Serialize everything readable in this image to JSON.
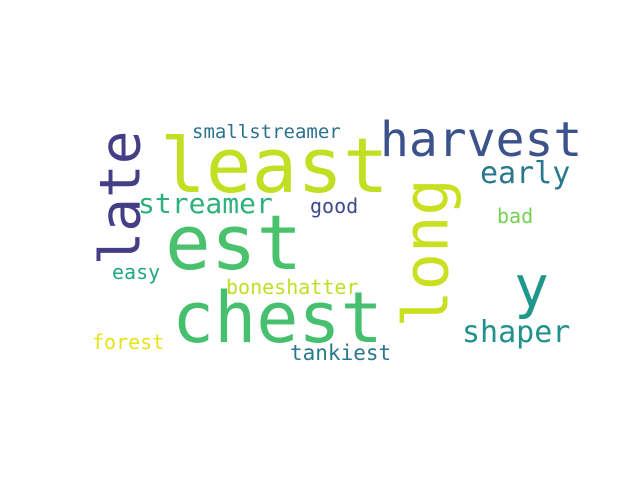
{
  "words": [
    {
      "text": "least",
      "color": "#c2df23"
    },
    {
      "text": "harvest",
      "color": "#3b528b"
    },
    {
      "text": "late",
      "color": "#433e85"
    },
    {
      "text": "smallstreamer",
      "color": "#2c728e"
    },
    {
      "text": "long",
      "color": "#c8e020"
    },
    {
      "text": "early",
      "color": "#2a788e"
    },
    {
      "text": "streamer",
      "color": "#2db27d"
    },
    {
      "text": "good",
      "color": "#3e4a89"
    },
    {
      "text": "est",
      "color": "#4ac16d"
    },
    {
      "text": "bad",
      "color": "#75d054"
    },
    {
      "text": "y",
      "color": "#1f988b"
    },
    {
      "text": "easy",
      "color": "#22a884"
    },
    {
      "text": "boneshatter",
      "color": "#bddf26"
    },
    {
      "text": "chest",
      "color": "#46c06f"
    },
    {
      "text": "shaper",
      "color": "#21918c"
    },
    {
      "text": "forest",
      "color": "#e5e419"
    },
    {
      "text": "tankiest",
      "color": "#2a788e"
    }
  ]
}
